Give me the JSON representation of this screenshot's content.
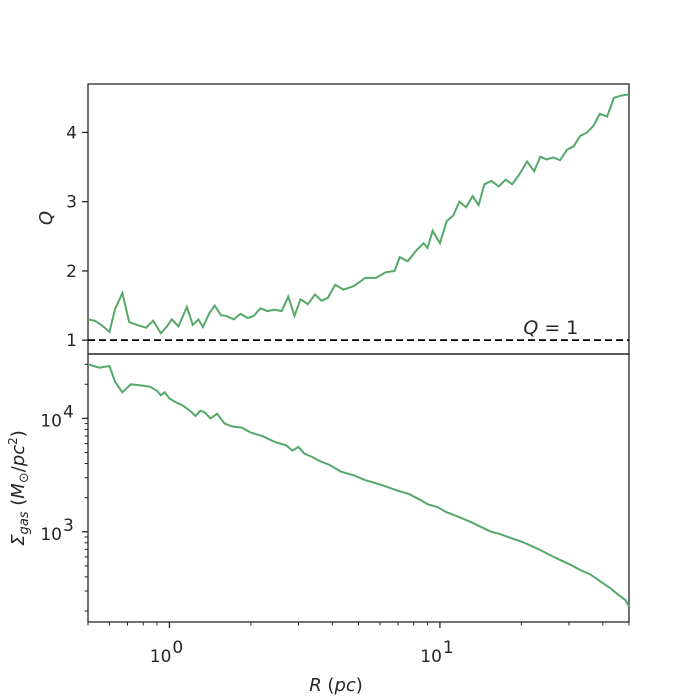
{
  "chart_data": [
    {
      "type": "line",
      "panel": "top",
      "x_scale": "log",
      "xlim": [
        0.5,
        50
      ],
      "ylim": [
        0.8,
        4.7
      ],
      "ylabel_var": "Q",
      "yticks": [
        1,
        2,
        3,
        4
      ],
      "ytick_labels": [
        "1",
        "2",
        "3",
        "4"
      ],
      "annotation": {
        "var": "Q",
        "text": " = 1",
        "x": 20,
        "y": 1.0
      },
      "reference_line": {
        "y": 1.0,
        "style": "dashed",
        "color": "#000000"
      },
      "line_color": "#55a868",
      "x": [
        0.5,
        0.53,
        0.56,
        0.6,
        0.63,
        0.67,
        0.71,
        0.76,
        0.82,
        0.87,
        0.93,
        0.98,
        1.02,
        1.08,
        1.16,
        1.22,
        1.28,
        1.33,
        1.4,
        1.47,
        1.55,
        1.62,
        1.73,
        1.83,
        1.95,
        2.05,
        2.17,
        2.3,
        2.45,
        2.6,
        2.75,
        2.9,
        3.05,
        3.25,
        3.45,
        3.65,
        3.85,
        4.1,
        4.4,
        4.8,
        5.3,
        5.8,
        6.3,
        6.8,
        7.1,
        7.6,
        8.2,
        8.7,
        9.0,
        9.4,
        10.0,
        10.6,
        11.2,
        11.8,
        12.5,
        13.2,
        13.9,
        14.6,
        15.5,
        16.5,
        17.5,
        18.5,
        19.7,
        21.0,
        22.3,
        23.5,
        24.8,
        26.2,
        27.8,
        29.5,
        31.2,
        33.0,
        35.0,
        37.0,
        39.0,
        41.5,
        44.0,
        46.5,
        50.0
      ],
      "values": [
        1.3,
        1.28,
        1.22,
        1.12,
        1.45,
        1.68,
        1.26,
        1.22,
        1.18,
        1.28,
        1.1,
        1.2,
        1.3,
        1.2,
        1.48,
        1.22,
        1.3,
        1.19,
        1.38,
        1.5,
        1.36,
        1.35,
        1.3,
        1.38,
        1.32,
        1.35,
        1.46,
        1.42,
        1.44,
        1.42,
        1.63,
        1.35,
        1.59,
        1.52,
        1.66,
        1.57,
        1.61,
        1.8,
        1.73,
        1.78,
        1.9,
        1.9,
        1.98,
        2.0,
        2.2,
        2.14,
        2.3,
        2.4,
        2.33,
        2.58,
        2.4,
        2.72,
        2.8,
        3.0,
        2.92,
        3.08,
        2.95,
        3.25,
        3.3,
        3.22,
        3.32,
        3.25,
        3.4,
        3.58,
        3.44,
        3.65,
        3.61,
        3.64,
        3.6,
        3.75,
        3.8,
        3.95,
        4.0,
        4.1,
        4.27,
        4.23,
        4.5,
        4.53,
        4.55
      ]
    },
    {
      "type": "line",
      "panel": "bottom",
      "x_scale": "log",
      "y_scale": "log",
      "xlim": [
        0.5,
        50
      ],
      "ylim": [
        160,
        37000
      ],
      "xlabel_var": "R",
      "xlabel_unit": "pc",
      "ylabel_var": "Σ",
      "ylabel_sub": "gas",
      "ylabel_unit_var": "M",
      "ylabel_unit_sub": "⊙",
      "ylabel_unit_den": "pc",
      "ylabel_unit_sup": "2",
      "xticks_major": [
        1,
        10
      ],
      "xtick_labels": [
        {
          "base": "10",
          "exp": "0"
        },
        {
          "base": "10",
          "exp": "1"
        }
      ],
      "yticks_major": [
        1000,
        10000
      ],
      "ytick_labels": [
        {
          "base": "10",
          "exp": "3"
        },
        {
          "base": "10",
          "exp": "4"
        }
      ],
      "line_color": "#55a868",
      "x": [
        0.5,
        0.55,
        0.6,
        0.63,
        0.67,
        0.72,
        0.79,
        0.85,
        0.9,
        0.93,
        0.96,
        1.0,
        1.05,
        1.12,
        1.2,
        1.25,
        1.3,
        1.35,
        1.42,
        1.5,
        1.6,
        1.7,
        1.85,
        2.0,
        2.2,
        2.45,
        2.7,
        2.85,
        3.0,
        3.15,
        3.35,
        3.6,
        3.9,
        4.3,
        4.8,
        5.3,
        5.9,
        6.5,
        7.0,
        7.7,
        8.5,
        9.0,
        9.8,
        10.5,
        11.3,
        12.2,
        13.2,
        14.2,
        15.5,
        16.8,
        18.3,
        20.0,
        21.8,
        23.8,
        26.0,
        28.0,
        30.5,
        33.0,
        36.0,
        39.5,
        42.5,
        45.5,
        48.5,
        50.0
      ],
      "values": [
        30000,
        28000,
        29000,
        21000,
        17000,
        20000,
        19500,
        19000,
        17500,
        16000,
        17000,
        15000,
        14000,
        13000,
        11500,
        10500,
        11700,
        11300,
        10000,
        11000,
        9000,
        8500,
        8300,
        7500,
        7000,
        6200,
        5800,
        5200,
        5600,
        4900,
        4600,
        4200,
        3900,
        3400,
        3150,
        2850,
        2650,
        2450,
        2300,
        2150,
        1900,
        1750,
        1650,
        1500,
        1400,
        1300,
        1200,
        1100,
        1000,
        950,
        880,
        820,
        750,
        680,
        610,
        560,
        510,
        460,
        420,
        360,
        320,
        280,
        250,
        220
      ]
    }
  ]
}
